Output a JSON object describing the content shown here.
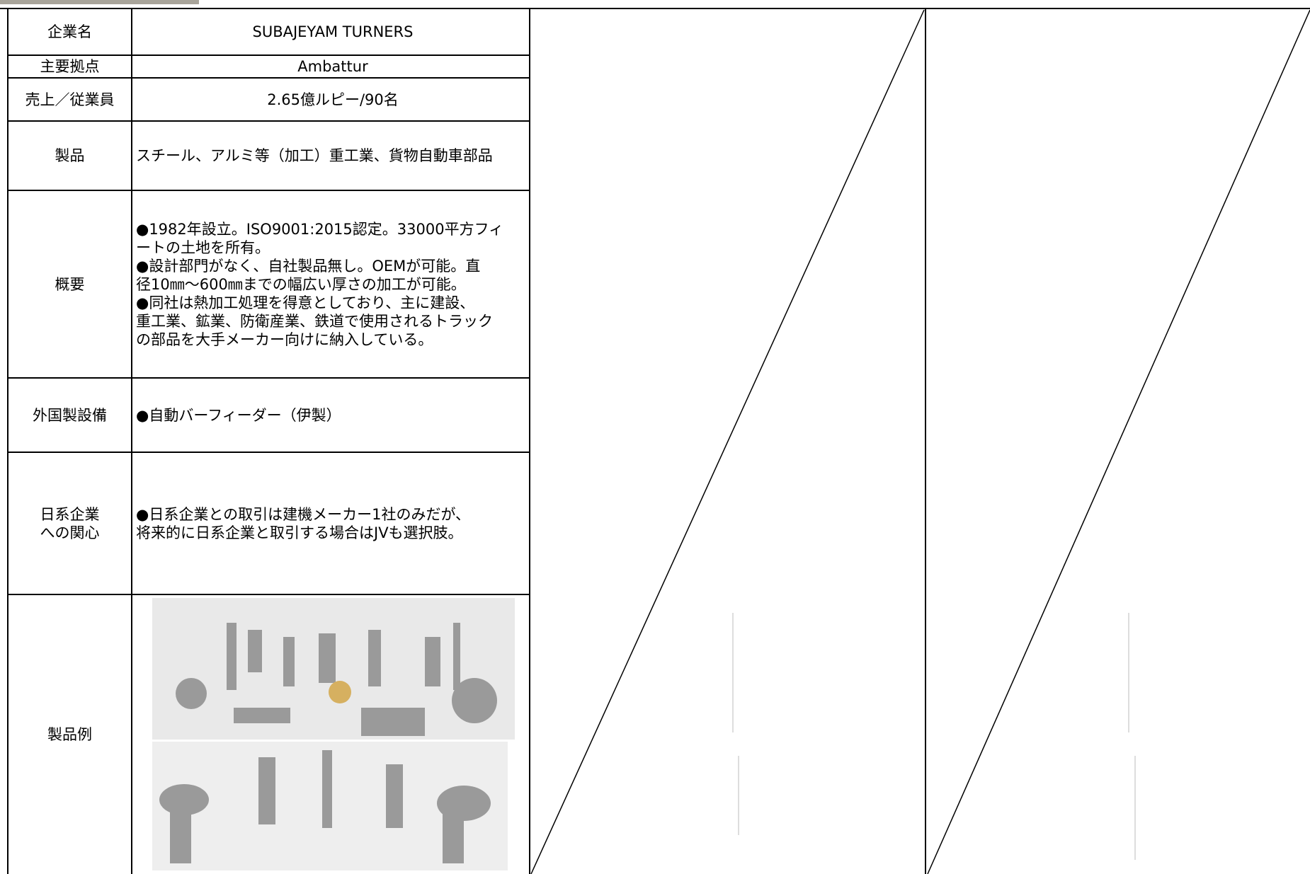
{
  "table": {
    "rows": [
      {
        "label": [
          "企業名"
        ],
        "value": [
          "SUBAJEYAM TURNERS"
        ]
      },
      {
        "label": [
          "主要拠点"
        ],
        "value": [
          "Ambattur"
        ]
      },
      {
        "label": [
          "売上／従業員"
        ],
        "value": [
          "2.65億ルピー/90名"
        ]
      },
      {
        "label": [
          "製品"
        ],
        "value": [
          "スチール、アルミ等（加工）重工業、貨物自動車部品"
        ]
      },
      {
        "label": [
          "概要"
        ],
        "value": [
          "●1982年設立。ISO9001:2015認定。33000平方フィ",
          "ートの土地を所有。",
          "●設計部門がなく、自社製品無し。OEMが可能。直",
          "径10㎜～600㎜までの幅広い厚さの加工が可能。",
          "●同社は熱加工処理を得意としており、主に建設、",
          "重工業、鉱業、防衛産業、鉄道で使用されるトラック",
          "の部品を大手メーカー向けに納入している。"
        ]
      },
      {
        "label": [
          "外国製設備"
        ],
        "value": [
          "●自動バーフィーダー（伊製）"
        ]
      },
      {
        "label": [
          "日系企業",
          "への関心"
        ],
        "value": [
          "●日系企業との取引は建機メーカー1社のみだが、",
          "将来的に日系企業と取引する場合はJVも選択肢。"
        ]
      },
      {
        "label": [
          "製品例"
        ],
        "value": []
      }
    ]
  }
}
